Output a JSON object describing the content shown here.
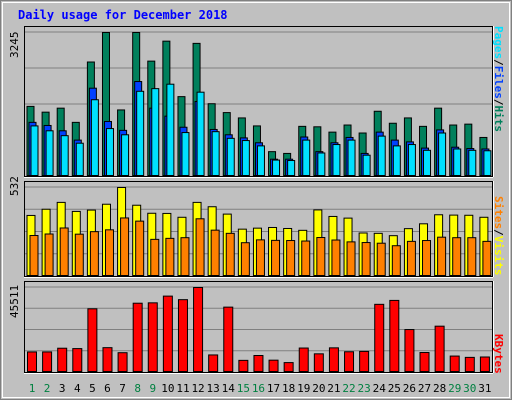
{
  "title": "Daily usage for December 2018",
  "colors": {
    "hits": "#00805c",
    "files": "#0040ff",
    "pages": "#00e0ff",
    "visits": "#ffff00",
    "sites": "#ff8000",
    "kbytes": "#ff0000",
    "weekday_label": "#000000",
    "weekend_label": "#008040"
  },
  "panels": {
    "top": {
      "ymax_label": "3245",
      "legend": [
        "Pages",
        "/",
        "Files",
        "/",
        "Hits"
      ]
    },
    "mid": {
      "ymax_label": "532",
      "legend": [
        "Sites",
        "/",
        "Visits"
      ]
    },
    "bot": {
      "ymax_label": "45511",
      "legend": [
        "KBytes"
      ]
    }
  },
  "chart_data": {
    "type": "bar",
    "title": "Daily usage for December 2018",
    "categories": [
      "1",
      "2",
      "3",
      "4",
      "5",
      "6",
      "7",
      "8",
      "9",
      "10",
      "11",
      "12",
      "13",
      "14",
      "15",
      "16",
      "17",
      "18",
      "19",
      "20",
      "21",
      "22",
      "23",
      "24",
      "25",
      "26",
      "27",
      "28",
      "29",
      "30",
      "31"
    ],
    "weekend_days": [
      1,
      2,
      8,
      9,
      15,
      16,
      22,
      23,
      29,
      30
    ],
    "series": [
      {
        "name": "Hits",
        "panel": "top",
        "values": [
          1580,
          1450,
          1540,
          1220,
          2580,
          3245,
          1500,
          3245,
          2600,
          3050,
          1800,
          3000,
          1640,
          1440,
          1320,
          1140,
          560,
          520,
          1130,
          1120,
          1000,
          1160,
          980,
          1470,
          1200,
          1320,
          1130,
          1540,
          1160,
          1180,
          880
        ]
      },
      {
        "name": "Files",
        "panel": "top",
        "values": [
          1220,
          1150,
          1030,
          820,
          1990,
          1240,
          1040,
          2140,
          1540,
          1360,
          1110,
          1690,
          1060,
          940,
          870,
          760,
          390,
          390,
          890,
          560,
          760,
          880,
          520,
          1000,
          820,
          780,
          640,
          1050,
          660,
          630,
          620
        ]
      },
      {
        "name": "Pages",
        "panel": "top",
        "values": [
          1140,
          1030,
          920,
          750,
          1730,
          1080,
          940,
          1920,
          1980,
          2080,
          990,
          1900,
          1010,
          860,
          810,
          690,
          370,
          360,
          820,
          530,
          720,
          820,
          480,
          910,
          690,
          720,
          590,
          980,
          620,
          590,
          580
        ]
      },
      {
        "name": "Visits",
        "panel": "mid",
        "values": [
          365,
          402,
          443,
          389,
          397,
          432,
          532,
          426,
          378,
          377,
          354,
          443,
          417,
          373,
          283,
          289,
          293,
          287,
          276,
          398,
          359,
          349,
          260,
          258,
          244,
          286,
          315,
          369,
          367,
          366,
          354
        ]
      },
      {
        "name": "Sites",
        "panel": "mid",
        "values": [
          245,
          254,
          290,
          253,
          268,
          279,
          350,
          331,
          222,
          228,
          232,
          345,
          277,
          258,
          202,
          219,
          216,
          215,
          212,
          233,
          218,
          207,
          203,
          199,
          184,
          210,
          215,
          235,
          232,
          232,
          210
        ]
      },
      {
        "name": "KBytes",
        "panel": "bot",
        "values": [
          11000,
          11000,
          13000,
          12800,
          34100,
          13300,
          10600,
          37100,
          37300,
          40900,
          39000,
          45511,
          9400,
          35000,
          6500,
          9100,
          6600,
          5300,
          13100,
          10000,
          13200,
          11100,
          11300,
          36500,
          38600,
          23000,
          10700,
          24800,
          8800,
          8100,
          8300
        ]
      }
    ],
    "ylim": {
      "top": [
        0,
        3245
      ],
      "mid": [
        0,
        532
      ],
      "bot": [
        0,
        45511
      ]
    }
  }
}
